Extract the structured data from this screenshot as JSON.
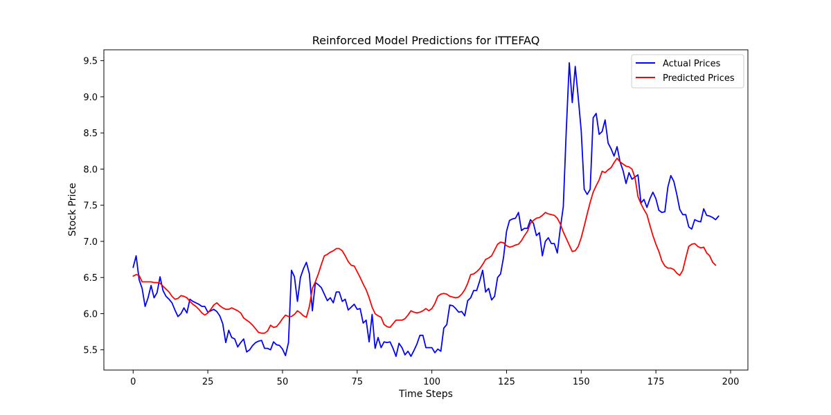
{
  "chart_data": {
    "type": "line",
    "title": "Reinforced Model Predictions for ITTEFAQ",
    "xlabel": "Time Steps",
    "ylabel": "Stock Price",
    "xlim": [
      -9.8,
      205.8
    ],
    "ylim": [
      5.22,
      9.65
    ],
    "x_ticks": [
      0,
      25,
      50,
      75,
      100,
      125,
      150,
      175,
      200
    ],
    "y_ticks": [
      5.5,
      6.0,
      6.5,
      7.0,
      7.5,
      8.0,
      8.5,
      9.0,
      9.5
    ],
    "x_tick_labels": [
      "0",
      "25",
      "50",
      "75",
      "100",
      "125",
      "150",
      "175",
      "200"
    ],
    "y_tick_labels": [
      "5.5",
      "6.0",
      "6.5",
      "7.0",
      "7.5",
      "8.0",
      "8.5",
      "9.0",
      "9.5"
    ],
    "grid": false,
    "legend_position": "upper right",
    "series": [
      {
        "name": "Actual Prices",
        "color": "#0000ff",
        "values": [
          6.64,
          6.8,
          6.47,
          6.35,
          6.1,
          6.22,
          6.39,
          6.22,
          6.29,
          6.51,
          6.32,
          6.24,
          6.2,
          6.15,
          6.05,
          5.96,
          6.0,
          6.08,
          6.01,
          6.2,
          6.17,
          6.15,
          6.13,
          6.1,
          6.1,
          6.02,
          6.04,
          6.06,
          6.03,
          5.97,
          5.86,
          5.6,
          5.77,
          5.67,
          5.65,
          5.54,
          5.6,
          5.65,
          5.47,
          5.5,
          5.56,
          5.6,
          5.62,
          5.63,
          5.52,
          5.52,
          5.5,
          5.61,
          5.57,
          5.56,
          5.51,
          5.42,
          5.6,
          6.6,
          6.51,
          6.17,
          6.5,
          6.62,
          6.71,
          6.55,
          6.04,
          6.43,
          6.4,
          6.36,
          6.27,
          6.18,
          6.22,
          6.15,
          6.3,
          6.3,
          6.17,
          6.2,
          6.05,
          6.09,
          6.13,
          6.06,
          6.07,
          5.87,
          5.91,
          5.61,
          5.99,
          5.52,
          5.67,
          5.53,
          5.61,
          5.6,
          5.61,
          5.52,
          5.41,
          5.59,
          5.53,
          5.43,
          5.48,
          5.41,
          5.49,
          5.58,
          5.7,
          5.7,
          5.53,
          5.53,
          5.53,
          5.46,
          5.51,
          5.48,
          5.8,
          5.85,
          6.12,
          6.11,
          6.07,
          6.02,
          6.03,
          5.97,
          6.18,
          6.22,
          6.32,
          6.32,
          6.45,
          6.6,
          6.3,
          6.35,
          6.19,
          6.24,
          6.5,
          6.55,
          6.78,
          7.14,
          7.29,
          7.31,
          7.32,
          7.4,
          7.15,
          7.18,
          7.18,
          7.3,
          7.25,
          7.08,
          7.12,
          6.8,
          7.0,
          7.05,
          6.97,
          6.97,
          6.84,
          7.18,
          7.48,
          8.54,
          9.47,
          8.92,
          9.42,
          8.99,
          8.53,
          7.72,
          7.65,
          7.72,
          8.71,
          8.77,
          8.48,
          8.52,
          8.68,
          8.36,
          8.28,
          8.18,
          8.31,
          8.1,
          7.98,
          7.8,
          7.95,
          7.86,
          7.89,
          7.92,
          7.53,
          7.58,
          7.47,
          7.59,
          7.68,
          7.59,
          7.43,
          7.4,
          7.41,
          7.75,
          7.91,
          7.83,
          7.65,
          7.44,
          7.37,
          7.37,
          7.2,
          7.17,
          7.3,
          7.28,
          7.27,
          7.45,
          7.36,
          7.35,
          7.33,
          7.3,
          7.35
        ]
      },
      {
        "name": "Predicted Prices",
        "color": "#ff0000",
        "values": [
          6.52,
          6.54,
          6.53,
          6.44,
          6.44,
          6.44,
          6.44,
          6.43,
          6.43,
          6.42,
          6.38,
          6.34,
          6.3,
          6.24,
          6.2,
          6.21,
          6.25,
          6.24,
          6.22,
          6.17,
          6.13,
          6.1,
          6.06,
          6.01,
          5.98,
          6.01,
          6.06,
          6.12,
          6.15,
          6.11,
          6.08,
          6.06,
          6.06,
          6.08,
          6.06,
          6.04,
          6.01,
          5.94,
          5.91,
          5.88,
          5.84,
          5.79,
          5.74,
          5.73,
          5.73,
          5.76,
          5.84,
          5.81,
          5.82,
          5.87,
          5.93,
          5.98,
          5.96,
          5.96,
          5.99,
          6.04,
          6.01,
          5.97,
          5.95,
          6.1,
          6.35,
          6.44,
          6.55,
          6.68,
          6.8,
          6.82,
          6.85,
          6.87,
          6.9,
          6.9,
          6.87,
          6.8,
          6.72,
          6.67,
          6.66,
          6.58,
          6.5,
          6.41,
          6.33,
          6.22,
          6.09,
          6.0,
          5.97,
          5.95,
          5.85,
          5.82,
          5.81,
          5.86,
          5.91,
          5.91,
          5.91,
          5.93,
          5.98,
          6.04,
          6.02,
          6.01,
          6.02,
          6.04,
          6.07,
          6.04,
          6.07,
          6.14,
          6.24,
          6.27,
          6.28,
          6.27,
          6.24,
          6.23,
          6.22,
          6.23,
          6.27,
          6.33,
          6.42,
          6.54,
          6.55,
          6.58,
          6.62,
          6.68,
          6.75,
          6.77,
          6.8,
          6.88,
          6.96,
          6.99,
          6.98,
          6.94,
          6.92,
          6.93,
          6.95,
          6.96,
          7.01,
          7.08,
          7.14,
          7.25,
          7.29,
          7.32,
          7.33,
          7.36,
          7.4,
          7.38,
          7.37,
          7.36,
          7.32,
          7.24,
          7.13,
          7.04,
          6.95,
          6.86,
          6.87,
          6.93,
          7.05,
          7.21,
          7.38,
          7.54,
          7.68,
          7.77,
          7.85,
          7.97,
          7.95,
          7.99,
          8.02,
          8.09,
          8.15,
          8.1,
          8.07,
          8.04,
          8.03,
          8.0,
          7.88,
          7.62,
          7.52,
          7.44,
          7.37,
          7.22,
          7.08,
          6.96,
          6.86,
          6.73,
          6.66,
          6.63,
          6.63,
          6.61,
          6.56,
          6.53,
          6.6,
          6.77,
          6.93,
          6.96,
          6.97,
          6.93,
          6.91,
          6.92,
          6.84,
          6.8,
          6.71,
          6.67
        ]
      }
    ]
  }
}
